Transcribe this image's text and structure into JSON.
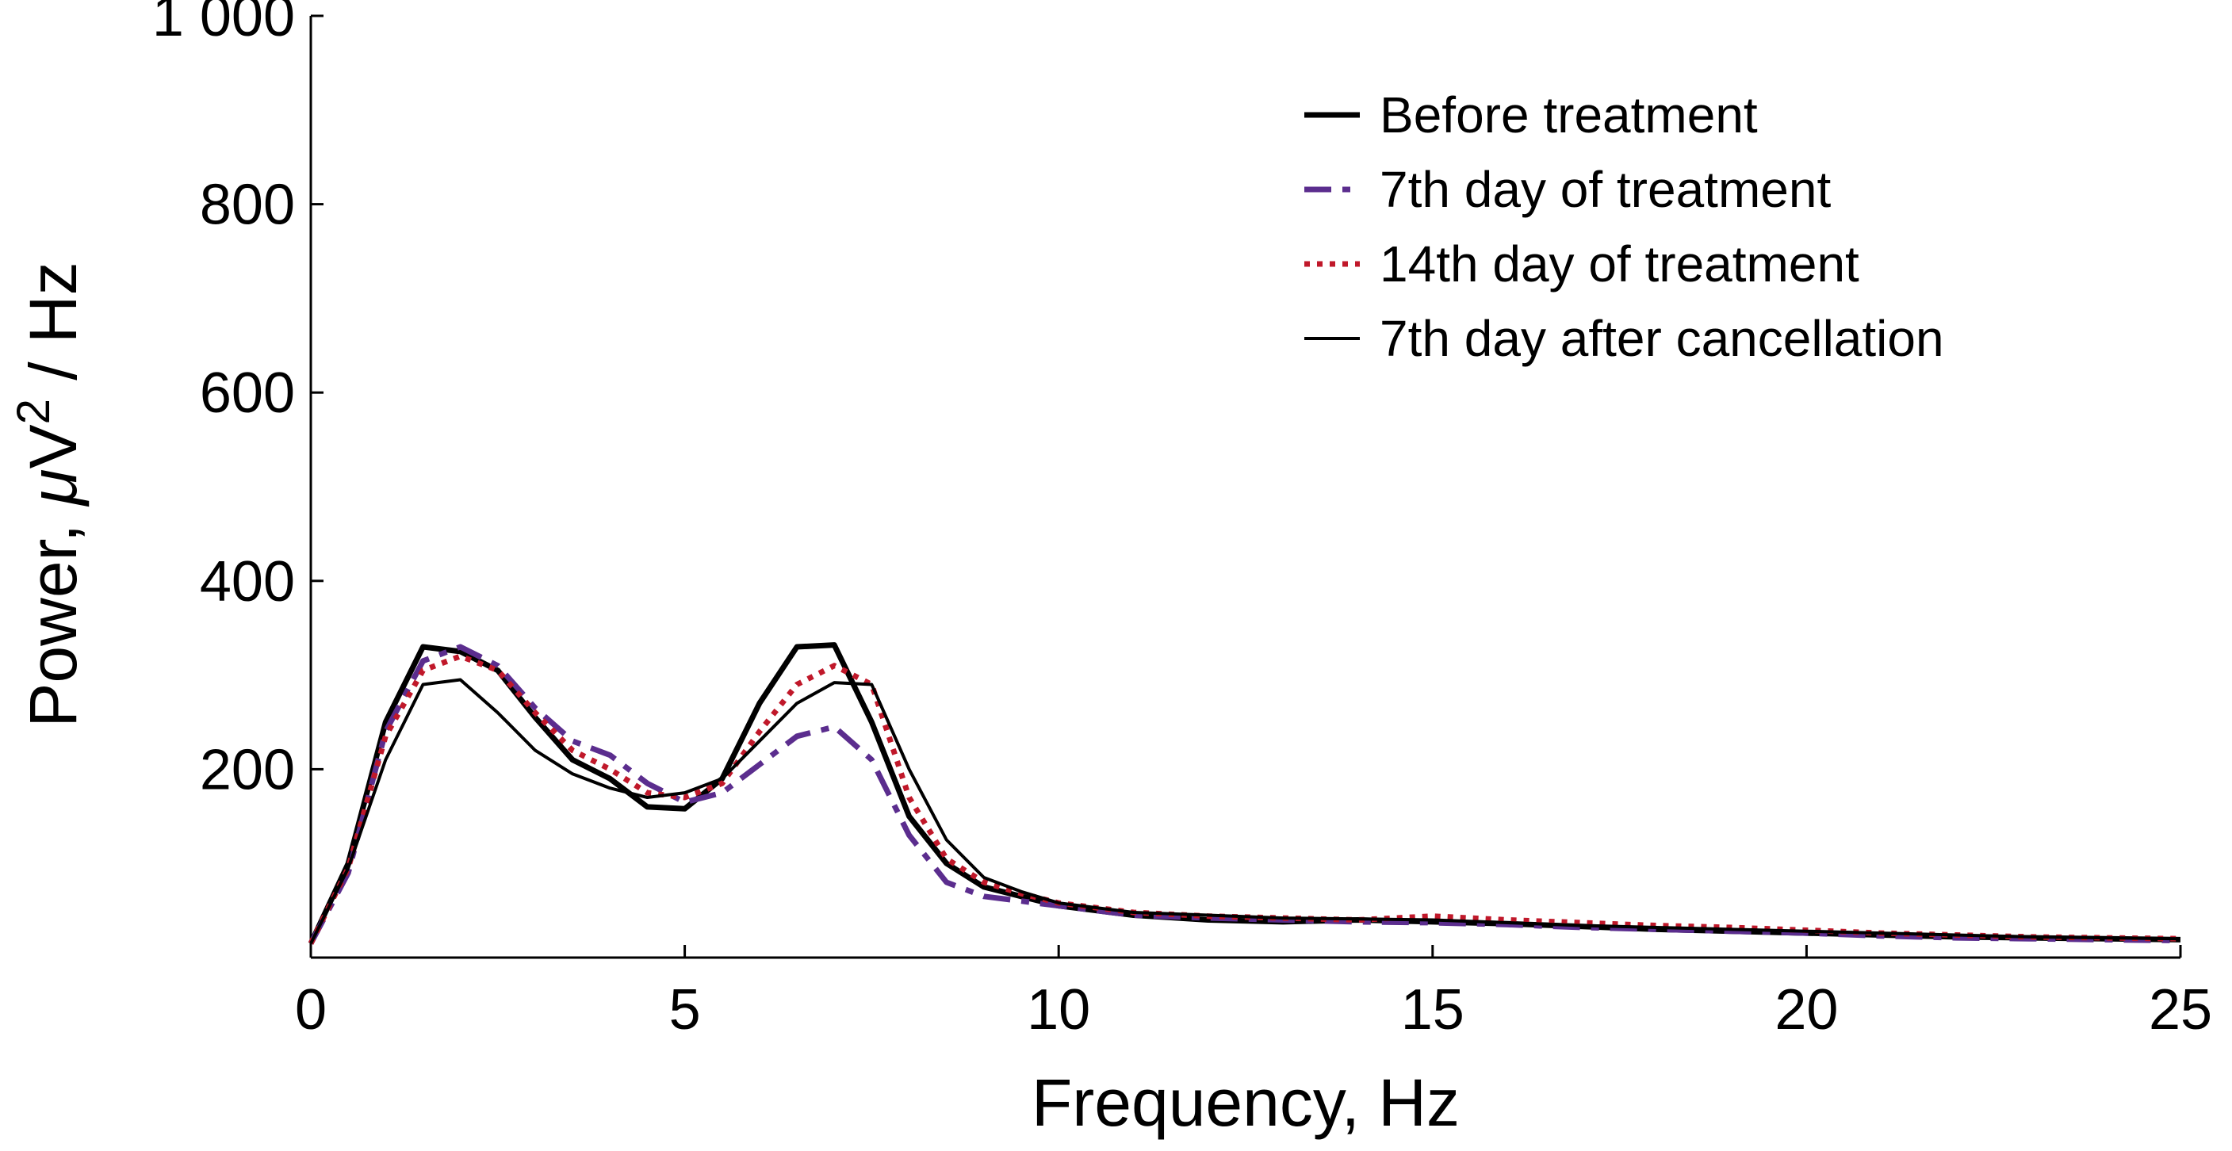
{
  "chart_data": {
    "type": "line",
    "title": "",
    "xlabel": "Frequency, Hz",
    "ylabel_prefix": "Power, ",
    "ylabel_mu": "μ",
    "ylabel_v": "V",
    "ylabel_exp": "2",
    "ylabel_suffix": " / Hz",
    "xlim": [
      0,
      25
    ],
    "ylim": [
      0,
      1000
    ],
    "xticks": [
      0,
      5,
      10,
      15,
      20,
      25
    ],
    "xtick_labels": [
      "0",
      "5",
      "10",
      "15",
      "20",
      "25"
    ],
    "yticks": [
      200,
      400,
      600,
      800,
      1000
    ],
    "ytick_labels": [
      "200",
      "400",
      "600",
      "800",
      "1 000"
    ],
    "grid": false,
    "legend_position": "top-right",
    "x": [
      0,
      0.5,
      1,
      1.5,
      2,
      2.5,
      3,
      3.5,
      4,
      4.5,
      5,
      5.5,
      6,
      6.5,
      7,
      7.5,
      8,
      8.5,
      9,
      9.5,
      10,
      11,
      12,
      13,
      14,
      15,
      16,
      17,
      18,
      19,
      20,
      21,
      22,
      23,
      24,
      25
    ],
    "series": [
      {
        "name": "Before treatment",
        "color": "#000000",
        "style": "solid-thick",
        "values": [
          15,
          100,
          250,
          330,
          325,
          305,
          255,
          210,
          190,
          160,
          158,
          190,
          270,
          330,
          332,
          250,
          150,
          100,
          75,
          65,
          55,
          45,
          40,
          38,
          40,
          38,
          36,
          33,
          30,
          28,
          26,
          24,
          22,
          21,
          20,
          19
        ]
      },
      {
        "name": "7th day of treatment",
        "color": "#5b2d8e",
        "style": "dashdot",
        "values": [
          15,
          90,
          240,
          315,
          330,
          310,
          265,
          230,
          215,
          185,
          165,
          175,
          205,
          235,
          245,
          210,
          130,
          80,
          65,
          60,
          55,
          45,
          42,
          40,
          38,
          37,
          35,
          32,
          30,
          28,
          26,
          23,
          21,
          20,
          19,
          18
        ]
      },
      {
        "name": "14th day of treatment",
        "color": "#c0182a",
        "style": "dotted",
        "values": [
          15,
          95,
          235,
          305,
          320,
          305,
          260,
          220,
          200,
          175,
          170,
          185,
          240,
          290,
          310,
          290,
          170,
          105,
          80,
          68,
          58,
          48,
          44,
          42,
          40,
          44,
          40,
          37,
          34,
          32,
          29,
          26,
          24,
          22,
          21,
          20
        ]
      },
      {
        "name": "7th day after cancellation",
        "color": "#000000",
        "style": "solid-thin",
        "values": [
          15,
          95,
          210,
          290,
          295,
          260,
          220,
          195,
          180,
          170,
          175,
          190,
          230,
          270,
          292,
          290,
          200,
          125,
          85,
          70,
          58,
          48,
          45,
          42,
          41,
          40,
          37,
          34,
          32,
          30,
          28,
          26,
          24,
          22,
          21,
          20
        ]
      }
    ]
  }
}
